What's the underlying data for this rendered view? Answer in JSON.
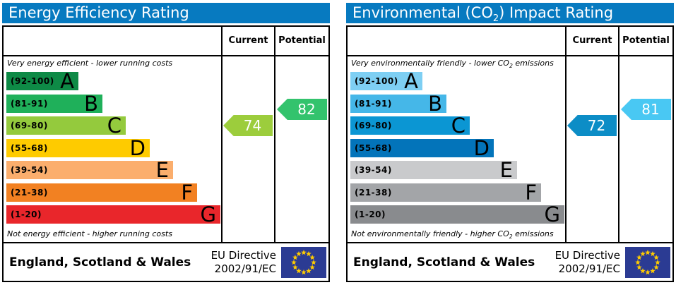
{
  "colors": {
    "header_blue": "#077ac0",
    "eu_flag_blue": "#2b3b93",
    "eu_star_yellow": "#ffcc00"
  },
  "panels": [
    {
      "title": {
        "pre": "Energy Efficiency Rating",
        "sub": "",
        "post": ""
      },
      "header": {
        "current": "Current",
        "potential": "Potential"
      },
      "captions": {
        "top": {
          "pre": "Very energy efficient - lower running costs",
          "sub": "",
          "post": ""
        },
        "bottom": {
          "pre": "Not energy efficient - higher running costs",
          "sub": "",
          "post": ""
        }
      },
      "bands": [
        {
          "range": "(92-100)",
          "letter": "A",
          "color": "#0e8a46"
        },
        {
          "range": "(81-91)",
          "letter": "B",
          "color": "#1fb05a"
        },
        {
          "range": "(69-80)",
          "letter": "C",
          "color": "#94ca3d"
        },
        {
          "range": "(55-68)",
          "letter": "D",
          "color": "#fecb00"
        },
        {
          "range": "(39-54)",
          "letter": "E",
          "color": "#fbae6d"
        },
        {
          "range": "(21-38)",
          "letter": "F",
          "color": "#f28122"
        },
        {
          "range": "(1-20)",
          "letter": "G",
          "color": "#e9262b"
        }
      ],
      "current": {
        "value": "74",
        "color": "#9ccd3c",
        "band_index": 2
      },
      "potential": {
        "value": "82",
        "color": "#33c36d",
        "band_index": 1
      },
      "footer": {
        "region": "England, Scotland & Wales",
        "directive1": "EU Directive",
        "directive2": "2002/91/EC"
      }
    },
    {
      "title": {
        "pre": "Environmental (CO",
        "sub": "2",
        "post": ") Impact Rating"
      },
      "header": {
        "current": "Current",
        "potential": "Potential"
      },
      "captions": {
        "top": {
          "pre": "Very environmentally friendly - lower CO",
          "sub": "2",
          "post": " emissions"
        },
        "bottom": {
          "pre": "Not environmentally friendly - higher CO",
          "sub": "2",
          "post": " emissions"
        }
      },
      "bands": [
        {
          "range": "(92-100)",
          "letter": "A",
          "color": "#7ecff3"
        },
        {
          "range": "(81-91)",
          "letter": "B",
          "color": "#45b7e8"
        },
        {
          "range": "(69-80)",
          "letter": "C",
          "color": "#0b96d3"
        },
        {
          "range": "(55-68)",
          "letter": "D",
          "color": "#0374ba"
        },
        {
          "range": "(39-54)",
          "letter": "E",
          "color": "#c9cacc"
        },
        {
          "range": "(21-38)",
          "letter": "F",
          "color": "#a3a5a8"
        },
        {
          "range": "(1-20)",
          "letter": "G",
          "color": "#898b8e"
        }
      ],
      "current": {
        "value": "72",
        "color": "#0c8dc6",
        "band_index": 2
      },
      "potential": {
        "value": "81",
        "color": "#49c8f3",
        "band_index": 1
      },
      "footer": {
        "region": "England, Scotland & Wales",
        "directive1": "EU Directive",
        "directive2": "2002/91/EC"
      }
    }
  ],
  "chart_data": [
    {
      "type": "bar",
      "title": "Energy Efficiency Rating",
      "categories": [
        "A (92-100)",
        "B (81-91)",
        "C (69-80)",
        "D (55-68)",
        "E (39-54)",
        "F (21-38)",
        "G (1-20)"
      ],
      "scale_range": [
        1,
        100
      ],
      "current": 74,
      "current_band": "C",
      "potential": 82,
      "potential_band": "B",
      "top_caption": "Very energy efficient - lower running costs",
      "bottom_caption": "Not energy efficient - higher running costs",
      "footer": "England, Scotland & Wales — EU Directive 2002/91/EC"
    },
    {
      "type": "bar",
      "title": "Environmental (CO2) Impact Rating",
      "categories": [
        "A (92-100)",
        "B (81-91)",
        "C (69-80)",
        "D (55-68)",
        "E (39-54)",
        "F (21-38)",
        "G (1-20)"
      ],
      "scale_range": [
        1,
        100
      ],
      "current": 72,
      "current_band": "C",
      "potential": 81,
      "potential_band": "B",
      "top_caption": "Very environmentally friendly - lower CO2 emissions",
      "bottom_caption": "Not environmentally friendly - higher CO2 emissions",
      "footer": "England, Scotland & Wales — EU Directive 2002/91/EC"
    }
  ]
}
